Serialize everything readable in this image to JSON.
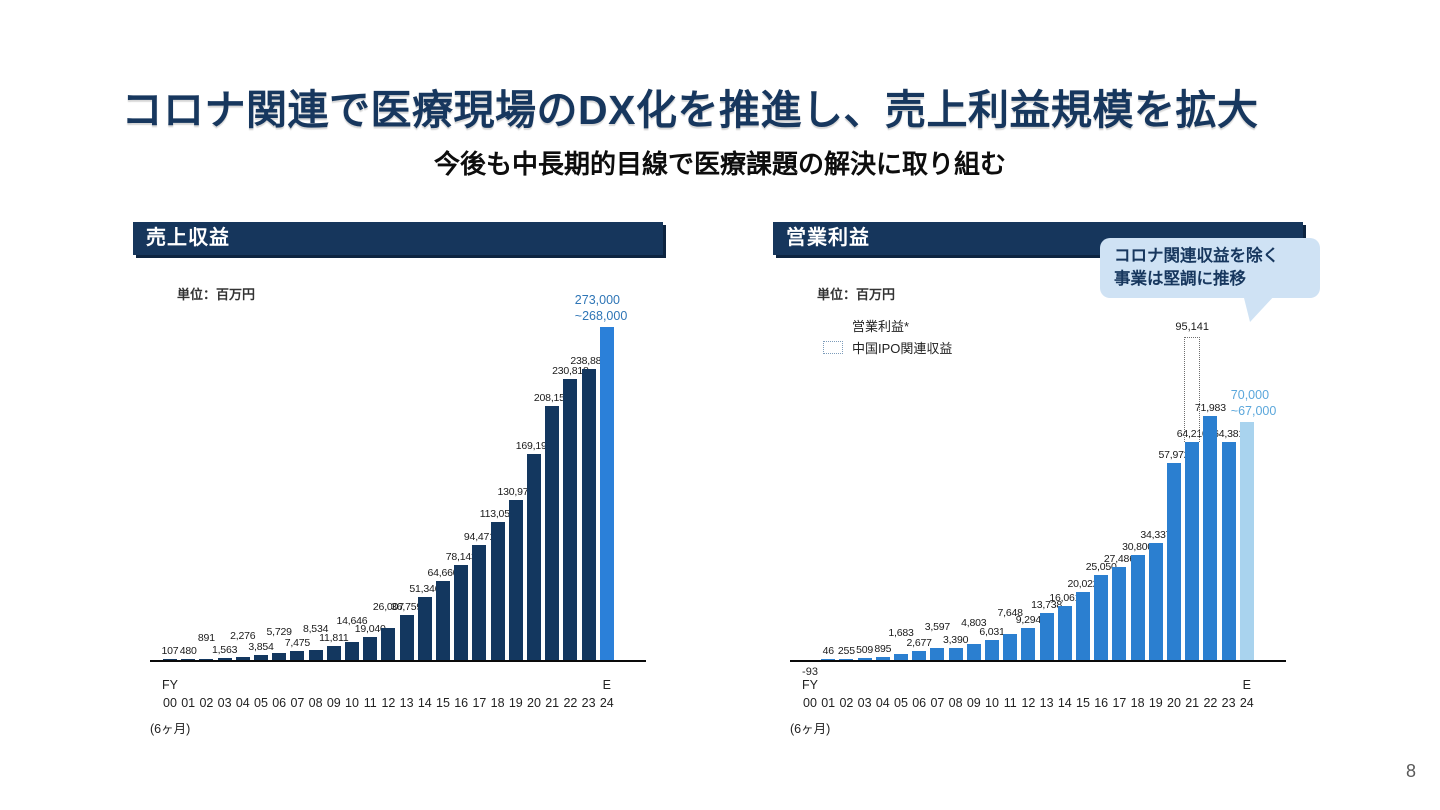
{
  "slide": {
    "title": "コロナ関連で医療現場のDX化を推進し、売上利益規模を拡大",
    "subtitle": "今後も中長期的目線で医療課題の解決に取り組む",
    "page_number": "8"
  },
  "callout": {
    "line1": "コロナ関連収益を除く",
    "line2": "事業は堅調に推移"
  },
  "colors": {
    "title_text": "#17375e",
    "header_bg": "#16365c",
    "header_shadow": "#0d2440",
    "revenue_bar": "#13375f",
    "revenue_forecast_bar": "#2b80d9",
    "profit_bar": "#2b7fd0",
    "profit_forecast_bar": "#a9d3ee",
    "forecast_label_left": "#2e75b6",
    "forecast_label_right": "#5ba7db",
    "callout_bg": "#cfe2f4"
  },
  "chart_data": [
    {
      "type": "bar",
      "title": "売上収益",
      "unit_label": "単位：百万円",
      "axis_prefix": "FY",
      "axis_suffix": "E",
      "axis_note": "(6ヶ月)",
      "categories": [
        "00",
        "01",
        "02",
        "03",
        "04",
        "05",
        "06",
        "07",
        "08",
        "09",
        "10",
        "11",
        "12",
        "13",
        "14",
        "15",
        "16",
        "17",
        "18",
        "19",
        "20",
        "21",
        "22",
        "23",
        "24"
      ],
      "values": [
        107,
        480,
        891,
        1563,
        2276,
        3854,
        5729,
        7475,
        8534,
        11811,
        14646,
        19040,
        26007,
        36759,
        51346,
        64660,
        78143,
        94471,
        113059,
        130973,
        169198,
        208159,
        230818,
        238883,
        273000
      ],
      "labels": [
        "107",
        "480",
        "891",
        "1,563",
        "2,276",
        "3,854",
        "5,729",
        "7,475",
        "8,534",
        "11,811",
        "14,646",
        "19,040",
        "26,007",
        "36,759",
        "51,346",
        "64,660",
        "78,143",
        "94,471",
        "113,059",
        "130,973",
        "169,198",
        "208,159",
        "230,818",
        "238,883",
        ""
      ],
      "forecast_label": [
        "273,000",
        "~268,000"
      ],
      "ylim": [
        0,
        312000
      ],
      "grid": false,
      "legend_position": "none"
    },
    {
      "type": "bar",
      "title": "営業利益",
      "unit_label": "単位：百万円",
      "axis_prefix": "FY",
      "axis_suffix": "E",
      "axis_note": "(6ヶ月)",
      "legend": [
        {
          "label": "営業利益*",
          "swatch": "solid"
        },
        {
          "label": "中国IPO関連収益",
          "swatch": "dotted"
        }
      ],
      "categories": [
        "00",
        "01",
        "02",
        "03",
        "04",
        "05",
        "06",
        "07",
        "08",
        "09",
        "10",
        "11",
        "12",
        "13",
        "14",
        "15",
        "16",
        "17",
        "18",
        "19",
        "20",
        "21",
        "22",
        "23",
        "24"
      ],
      "values": [
        -93,
        46,
        255,
        509,
        895,
        1683,
        2677,
        3597,
        3390,
        4803,
        6031,
        7648,
        9294,
        13738,
        16061,
        20022,
        25050,
        27486,
        30800,
        34337,
        57972,
        64210,
        71983,
        64381,
        70000
      ],
      "labels": [
        "-93",
        "46",
        "255",
        "509",
        "895",
        "1,683",
        "2,677",
        "3,597",
        "3,390",
        "4,803",
        "6,031",
        "7,648",
        "9,294",
        "13,738",
        "16,061",
        "20,022",
        "25,050",
        "27,486",
        "30,800",
        "34,337",
        "57,972",
        "64,210",
        "71,983",
        "64,381",
        ""
      ],
      "forecast_label": [
        "70,000",
        "~67,000"
      ],
      "annotation": {
        "index": 21,
        "top_value": 95141,
        "label": "95,141"
      },
      "ylim": [
        0,
        112000
      ],
      "grid": false,
      "legend_position": "top-left"
    }
  ]
}
